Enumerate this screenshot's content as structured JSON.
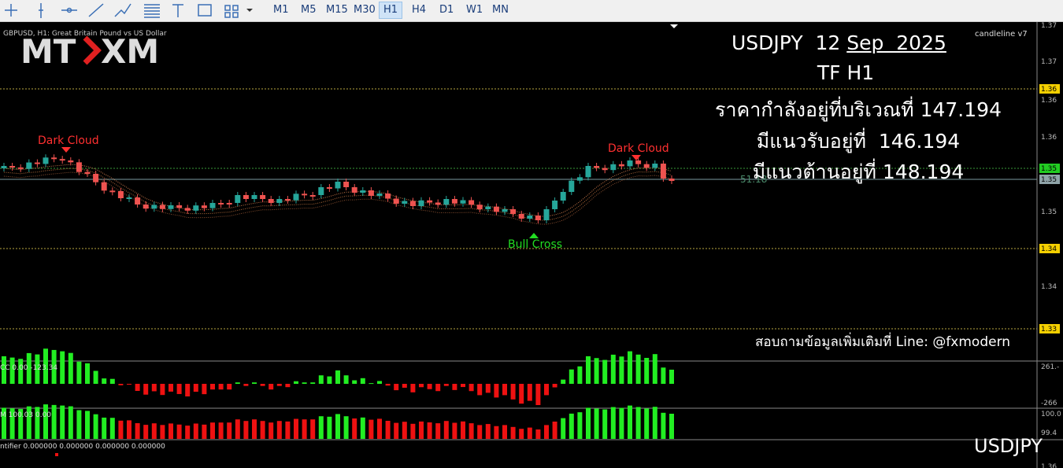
{
  "toolbar": {
    "timeframes": [
      "M1",
      "M5",
      "M15",
      "M30",
      "H1",
      "H4",
      "D1",
      "W1",
      "MN"
    ],
    "active": "H1"
  },
  "chart": {
    "symbol_label": "GBPUSD, H1: Great Britain Pound vs US Dollar",
    "indicator_name": "candleline v7",
    "logo": {
      "left": "MT",
      "right": "XM"
    },
    "price_axis": [
      "1.37",
      "1.37",
      "1.36",
      "1.36",
      "1.36",
      "1.35",
      "1.35",
      "1.35",
      "1.34",
      "1.34",
      "1.33"
    ],
    "level_value": "51.18",
    "patterns": [
      "Dark Cloud",
      "Dark Cloud",
      "Bull Cross"
    ]
  },
  "overlay": {
    "title_symbol": "USDJPY  12",
    "title_date": "Sep  2025",
    "timeframe": "TF H1",
    "price_line": "ราคากำลังอยู่ที่บริเวณที่ 147.194",
    "support_line": "มีแนวรับอยู่ที่  146.194",
    "resistance_line": "มีแนวต้านอยู่ที่ 148.194",
    "contact": "สอบถามข้อมูลเพิ่มเติมที่ Line: @fxmodern",
    "watermark": "USDJPY"
  },
  "subwindows": [
    {
      "label": "CC 0.00 -123.34",
      "axis": [
        "261.-",
        "-266"
      ]
    },
    {
      "label": "M 100.03 0.00",
      "axis": [
        "100.0",
        "99.4"
      ]
    },
    {
      "label": "ntifier 0.000000 0.000000 0.000000 0.000000",
      "axis": [
        "1.36"
      ]
    }
  ]
}
